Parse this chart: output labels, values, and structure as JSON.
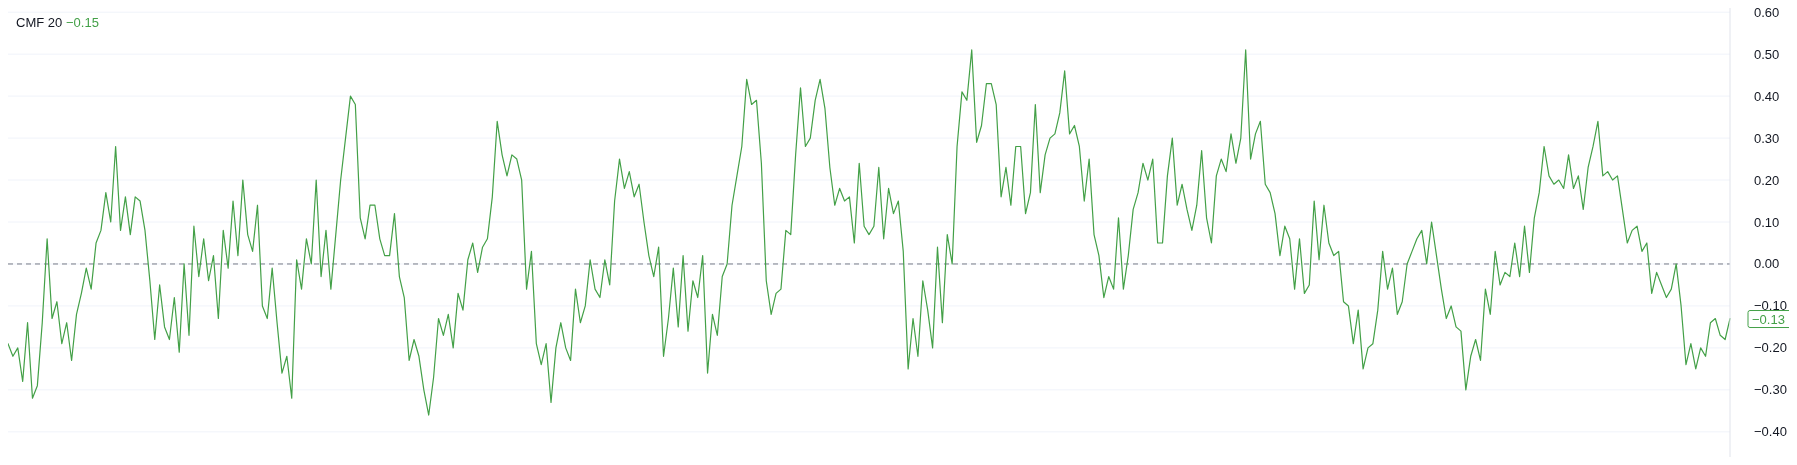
{
  "chart_data": {
    "type": "line",
    "title": "CMF 20",
    "annotations": [
      "−0.15",
      "−0.13"
    ],
    "categories": [
      null,
      null,
      null,
      null,
      null,
      null,
      null,
      null,
      null,
      null,
      null,
      null,
      null,
      null,
      null,
      null,
      null,
      null,
      null,
      null,
      null,
      null,
      null,
      null,
      null,
      null,
      null,
      null,
      null,
      null,
      null,
      null,
      null,
      null,
      null,
      null,
      null,
      null,
      null,
      null,
      null,
      null,
      null,
      null,
      null,
      null,
      null,
      null,
      null,
      null,
      null,
      null,
      null,
      null,
      null,
      null,
      null,
      null,
      null,
      null,
      null,
      null,
      null,
      null,
      null,
      null,
      null,
      null,
      null,
      null,
      null,
      null,
      null,
      null,
      null,
      null,
      null,
      null,
      null,
      null,
      null,
      null,
      null,
      null,
      null,
      null,
      null,
      null,
      null,
      null,
      null,
      null,
      null,
      null,
      null,
      null,
      null,
      null,
      null,
      null,
      null,
      null,
      null,
      null,
      null,
      null,
      null,
      null,
      null,
      null,
      null,
      null,
      null,
      null,
      null,
      null,
      null,
      null,
      null,
      null,
      null,
      null,
      null,
      null,
      null,
      null,
      null,
      null,
      null,
      null,
      null,
      null,
      null,
      null,
      null,
      null,
      null,
      null,
      null,
      null,
      null,
      null,
      null,
      null,
      null,
      null,
      null,
      null,
      null,
      null,
      null,
      null,
      null,
      null,
      null,
      null,
      null,
      null,
      null,
      null,
      null,
      null,
      null,
      null,
      null,
      null,
      null,
      null,
      null,
      null,
      null,
      null,
      null,
      null,
      null,
      null,
      null,
      null,
      null,
      null,
      null,
      null,
      null,
      null,
      null,
      null,
      null,
      null,
      null,
      null,
      null,
      null,
      null,
      null,
      null,
      null,
      null,
      null,
      null,
      null,
      null,
      null,
      null,
      null,
      null,
      null,
      null,
      null,
      null,
      null,
      null,
      null,
      null,
      null,
      null,
      null,
      null,
      null,
      null,
      null,
      null,
      null,
      null,
      null,
      null,
      null,
      null,
      null,
      null,
      null,
      null,
      null,
      null,
      null,
      null,
      null,
      null,
      null,
      null,
      null,
      null,
      null,
      null,
      null,
      null,
      null,
      null,
      null,
      null,
      null,
      null,
      null,
      null,
      null,
      null,
      null,
      null,
      null,
      null,
      null,
      null,
      null,
      null,
      null,
      null,
      null,
      null,
      null,
      null,
      null,
      null,
      null,
      null,
      null,
      null,
      null,
      null,
      null,
      null,
      null,
      null,
      null,
      null,
      null,
      null,
      null,
      null,
      null,
      null,
      null,
      null,
      null,
      null,
      null,
      null,
      null,
      null,
      null,
      null,
      null,
      null,
      null,
      null,
      null,
      null,
      null,
      null,
      null,
      null,
      null,
      null,
      null,
      null,
      null,
      null,
      null,
      null,
      null,
      null,
      null,
      null,
      null,
      null,
      null,
      null,
      null,
      null,
      null,
      null,
      null,
      null,
      null,
      null,
      null,
      null,
      null,
      null,
      null,
      null,
      null,
      null,
      null,
      null,
      null,
      null,
      null,
      null,
      null,
      null,
      null,
      null,
      null,
      null
    ],
    "ylim": [
      -0.46,
      0.61
    ],
    "yticks": [
      {
        "value": -0.4,
        "label": "−0.40"
      },
      {
        "value": -0.3,
        "label": "−0.30"
      },
      {
        "value": -0.2,
        "label": "−0.20"
      },
      {
        "value": -0.1,
        "label": "−0.10"
      },
      {
        "value": 0,
        "label": "0.00"
      },
      {
        "value": 0.1,
        "label": "0.10"
      },
      {
        "value": 0.2,
        "label": "0.20"
      },
      {
        "value": 0.3,
        "label": "0.30"
      },
      {
        "value": 0.4,
        "label": "0.40"
      },
      {
        "value": 0.5,
        "label": "0.50"
      },
      {
        "value": 0.6,
        "label": "0.60"
      }
    ],
    "grid": "y",
    "marker": "none",
    "line_style": "solid",
    "ref_lines": [
      {
        "axis": "y",
        "value": 0,
        "label": null,
        "color": "#787b86",
        "line_style": "dashed"
      }
    ],
    "series": [
      {
        "color": "#43a047",
        "values": [
          -0.19,
          -0.22,
          -0.2,
          -0.28,
          -0.14,
          -0.32,
          -0.29,
          -0.14,
          0.06,
          -0.13,
          -0.09,
          -0.19,
          -0.14,
          -0.23,
          -0.12,
          -0.07,
          -0.01,
          -0.06,
          0.05,
          0.08,
          0.17,
          0.1,
          0.28,
          0.08,
          0.16,
          0.07,
          0.16,
          0.15,
          0.08,
          -0.04,
          -0.18,
          -0.05,
          -0.15,
          -0.18,
          -0.08,
          -0.21,
          0.0,
          -0.17,
          0.09,
          -0.03,
          0.06,
          -0.04,
          0.02,
          -0.13,
          0.08,
          -0.01,
          0.15,
          0.02,
          0.2,
          0.07,
          0.03,
          0.14,
          -0.1,
          -0.13,
          -0.01,
          -0.14,
          -0.26,
          -0.22,
          -0.32,
          0.01,
          -0.06,
          0.06,
          0.0,
          0.2,
          -0.03,
          0.08,
          -0.06,
          0.07,
          0.2,
          0.3,
          0.4,
          0.38,
          0.11,
          0.06,
          0.14,
          0.14,
          0.06,
          0.02,
          0.02,
          0.12,
          -0.03,
          -0.08,
          -0.23,
          -0.18,
          -0.22,
          -0.3,
          -0.36,
          -0.27,
          -0.13,
          -0.17,
          -0.12,
          -0.2,
          -0.07,
          -0.11,
          0.01,
          0.05,
          -0.02,
          0.04,
          0.06,
          0.16,
          0.34,
          0.26,
          0.21,
          0.26,
          0.25,
          0.2,
          -0.06,
          0.03,
          -0.19,
          -0.24,
          -0.19,
          -0.33,
          -0.2,
          -0.14,
          -0.2,
          -0.23,
          -0.06,
          -0.14,
          -0.1,
          0.01,
          -0.06,
          -0.08,
          0.01,
          -0.05,
          0.15,
          0.25,
          0.18,
          0.22,
          0.16,
          0.19,
          0.1,
          0.02,
          -0.03,
          0.04,
          -0.22,
          -0.13,
          -0.01,
          -0.15,
          0.02,
          -0.16,
          -0.04,
          -0.08,
          0.02,
          -0.26,
          -0.12,
          -0.17,
          -0.03,
          0.0,
          0.14,
          0.21,
          0.28,
          0.44,
          0.38,
          0.39,
          0.24,
          -0.04,
          -0.12,
          -0.07,
          -0.06,
          0.08,
          0.07,
          0.26,
          0.42,
          0.28,
          0.3,
          0.39,
          0.44,
          0.37,
          0.23,
          0.14,
          0.18,
          0.15,
          0.16,
          0.05,
          0.24,
          0.09,
          0.07,
          0.09,
          0.23,
          0.06,
          0.18,
          0.12,
          0.15,
          0.03,
          -0.25,
          -0.13,
          -0.22,
          -0.04,
          -0.11,
          -0.2,
          0.04,
          -0.14,
          0.07,
          0.0,
          0.28,
          0.41,
          0.39,
          0.51,
          0.29,
          0.33,
          0.43,
          0.43,
          0.38,
          0.16,
          0.23,
          0.14,
          0.28,
          0.28,
          0.12,
          0.17,
          0.38,
          0.17,
          0.26,
          0.3,
          0.31,
          0.36,
          0.46,
          0.31,
          0.33,
          0.28,
          0.15,
          0.25,
          0.07,
          0.02,
          -0.08,
          -0.03,
          -0.06,
          0.11,
          -0.06,
          0.02,
          0.13,
          0.17,
          0.24,
          0.2,
          0.25,
          0.05,
          0.05,
          0.21,
          0.3,
          0.14,
          0.19,
          0.13,
          0.08,
          0.14,
          0.27,
          0.11,
          0.05,
          0.21,
          0.25,
          0.22,
          0.31,
          0.24,
          0.3,
          0.51,
          0.25,
          0.31,
          0.34,
          0.19,
          0.17,
          0.12,
          0.02,
          0.09,
          0.06,
          -0.06,
          0.06,
          -0.07,
          -0.05,
          0.15,
          0.01,
          0.14,
          0.05,
          0.02,
          0.03,
          -0.09,
          -0.1,
          -0.19,
          -0.11,
          -0.25,
          -0.2,
          -0.19,
          -0.11,
          0.03,
          -0.06,
          -0.01,
          -0.12,
          -0.09,
          0.0,
          0.03,
          0.06,
          0.08,
          0.0,
          0.1,
          0.02,
          -0.06,
          -0.13,
          -0.1,
          -0.15,
          -0.16,
          -0.3,
          -0.22,
          -0.18,
          -0.23,
          -0.06,
          -0.12,
          0.03,
          -0.05,
          -0.02,
          -0.03,
          0.05,
          -0.03,
          0.09,
          -0.02,
          0.11,
          0.17,
          0.28,
          0.21,
          0.19,
          0.2,
          0.18,
          0.26,
          0.18,
          0.21,
          0.13,
          0.23,
          0.28,
          0.34,
          0.21,
          0.22,
          0.2,
          0.21,
          0.13,
          0.05,
          0.08,
          0.09,
          0.03,
          0.05,
          -0.07,
          -0.02,
          -0.05,
          -0.08,
          -0.06,
          0.0,
          -0.1,
          -0.24,
          -0.19,
          -0.25,
          -0.2,
          -0.22,
          -0.14,
          -0.13,
          -0.17,
          -0.18,
          -0.13
        ]
      }
    ]
  }
}
